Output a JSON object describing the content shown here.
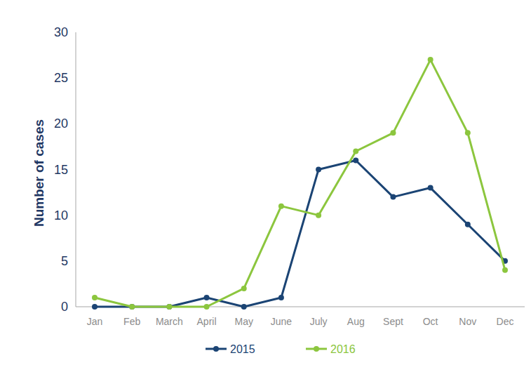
{
  "chart_data": {
    "type": "line",
    "y_label": "Number of cases",
    "categories": [
      "Jan",
      "Feb",
      "March",
      "April",
      "May",
      "June",
      "July",
      "Aug",
      "Sept",
      "Oct",
      "Nov",
      "Dec"
    ],
    "series": [
      {
        "name": "2015",
        "color": "#1b4474",
        "marker": "circle",
        "line_style": "solid",
        "values": [
          0,
          0,
          0,
          1,
          0,
          1,
          15,
          16,
          12,
          13,
          9,
          5
        ]
      },
      {
        "name": "2016",
        "color": "#8cc63e",
        "marker": "circle",
        "line_style": "solid",
        "values": [
          1,
          0,
          0,
          0,
          2,
          11,
          10,
          17,
          19,
          27,
          19,
          4
        ]
      }
    ],
    "ylim": [
      0,
      30
    ],
    "yticks": [
      0,
      5,
      10,
      15,
      20,
      25,
      30
    ],
    "grid": false,
    "legend": "bottom"
  }
}
